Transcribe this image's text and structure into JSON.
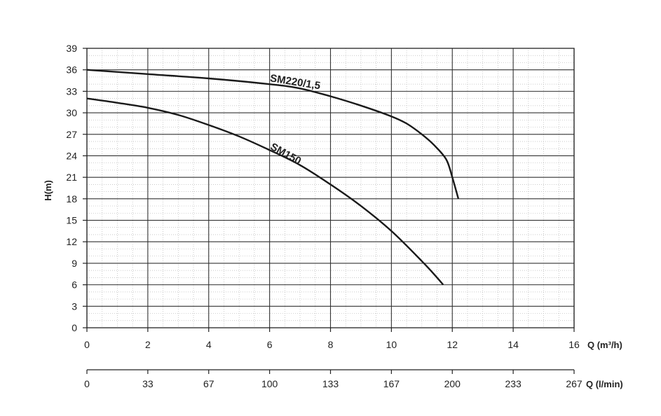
{
  "chart_data": {
    "type": "line",
    "title": "",
    "ylabel": "H(m)",
    "xlabel": "Q (m³/h)",
    "xlabel2": "Q (l/min)",
    "xlim": [
      0,
      16
    ],
    "ylim": [
      0,
      39
    ],
    "xticks": [
      "0",
      "2",
      "4",
      "6",
      "8",
      "10",
      "12",
      "14",
      "16"
    ],
    "yticks": [
      "0",
      "3",
      "6",
      "9",
      "12",
      "15",
      "18",
      "21",
      "24",
      "27",
      "30",
      "33",
      "36",
      "39"
    ],
    "x2ticks": [
      "0",
      "33",
      "67",
      "100",
      "133",
      "167",
      "200",
      "233",
      "267"
    ],
    "grid": true,
    "series": [
      {
        "name": "SM220/1,5",
        "x": [
          0,
          2,
          4,
          6,
          7,
          8,
          9,
          10,
          10.5,
          11,
          11.4,
          11.8,
          12.0,
          12.2
        ],
        "y": [
          36,
          35.4,
          34.8,
          34,
          33.4,
          32.3,
          31,
          29.5,
          28.5,
          27,
          25.5,
          23.5,
          21,
          18
        ]
      },
      {
        "name": "SM150",
        "x": [
          0,
          1,
          2,
          3,
          4,
          5,
          6,
          7,
          8,
          9,
          10,
          11,
          11.5,
          11.7
        ],
        "y": [
          32,
          31.4,
          30.7,
          29.7,
          28.3,
          26.7,
          24.8,
          22.7,
          20,
          17,
          13.5,
          9.3,
          7,
          6
        ]
      }
    ]
  }
}
